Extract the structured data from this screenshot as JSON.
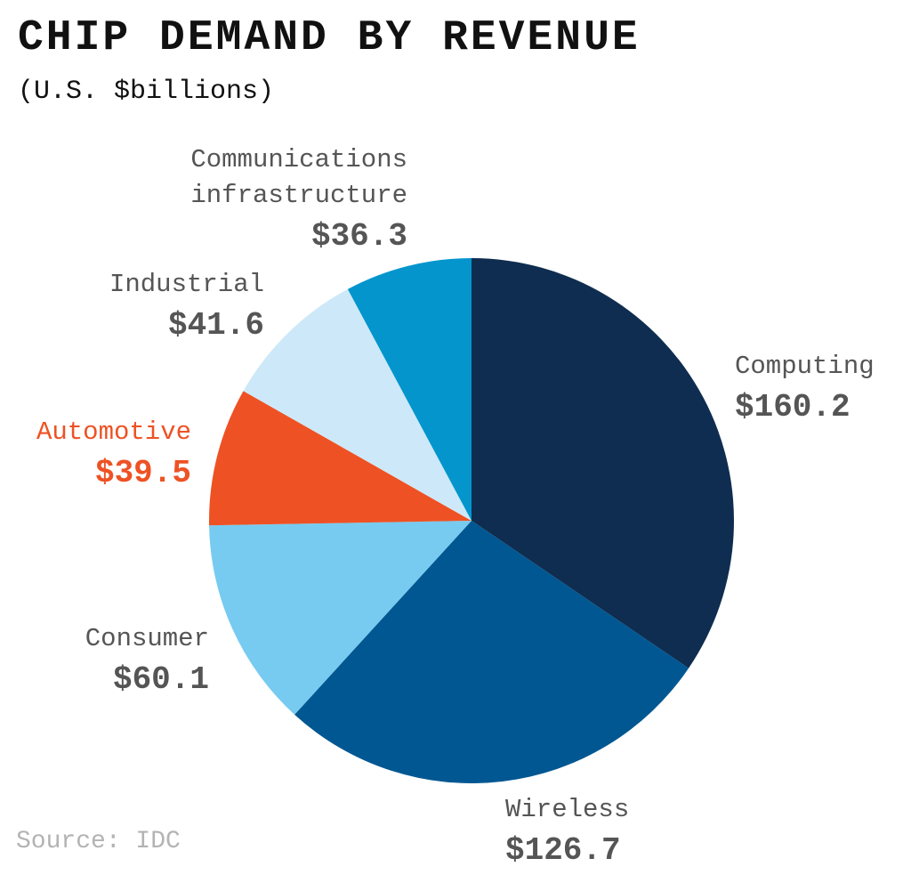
{
  "chart_data": {
    "type": "pie",
    "title": "CHIP DEMAND BY REVENUE",
    "subtitle": "(U.S. $billions)",
    "source": "Source: IDC",
    "categories": [
      "Computing",
      "Wireless",
      "Consumer",
      "Automotive",
      "Industrial",
      "Communications infrastructure"
    ],
    "values": [
      160.2,
      126.7,
      60.1,
      39.5,
      41.6,
      36.3
    ],
    "value_labels": [
      "$160.2",
      "$126.7",
      "$60.1",
      "$39.5",
      "$41.6",
      "$36.3"
    ],
    "colors": [
      "#0f2d50",
      "#015792",
      "#77cbf0",
      "#ee5224",
      "#cde9f9",
      "#0495cd"
    ],
    "label_colors": [
      "#555555",
      "#555555",
      "#555555",
      "#ee5224",
      "#555555",
      "#555555"
    ]
  }
}
